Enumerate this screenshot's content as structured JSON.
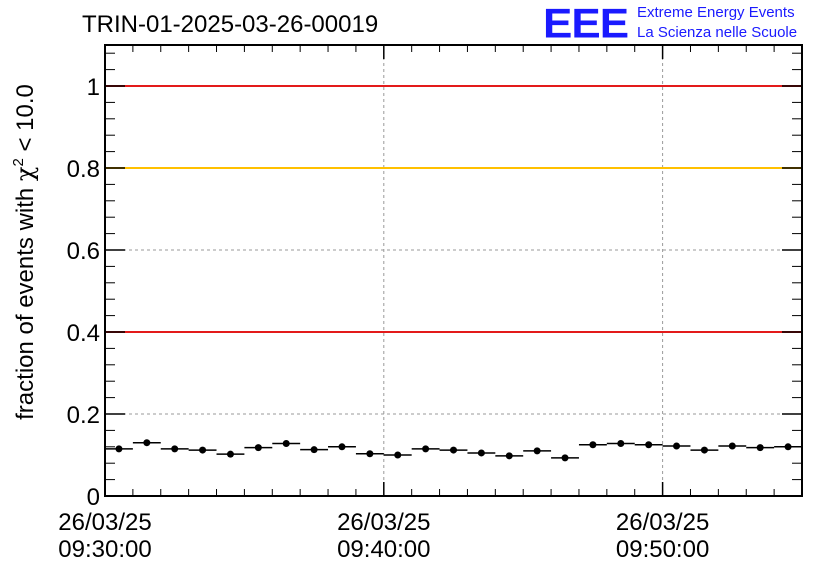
{
  "logo": {
    "mark": "EEE",
    "line1": "Extreme Energy Events",
    "line2": "La Scienza nelle Scuole",
    "color": "#1a1aff"
  },
  "chart_data": {
    "type": "scatter",
    "title": "TRIN-01-2025-03-26-00019",
    "ylabel": "fraction of events with χ² < 10.0",
    "ylabel_parts": {
      "pre": "fraction of events with ",
      "sym": "χ",
      "sup": "2",
      "post": " < 10.0"
    },
    "ylim": [
      0,
      1.1
    ],
    "xlim": [
      "2025-03-26 09:30:00",
      "2025-03-26 09:55:00"
    ],
    "y_ticks": [
      {
        "value": 0,
        "label": "0"
      },
      {
        "value": 0.2,
        "label": "0.2"
      },
      {
        "value": 0.4,
        "label": "0.4"
      },
      {
        "value": 0.6,
        "label": "0.6"
      },
      {
        "value": 0.8,
        "label": "0.8"
      },
      {
        "value": 1,
        "label": "1"
      }
    ],
    "x_ticks": [
      {
        "value": "2025-03-26 09:30:00",
        "line1": "26/03/25",
        "line2": "09:30:00"
      },
      {
        "value": "2025-03-26 09:40:00",
        "line1": "26/03/25",
        "line2": "09:40:00"
      },
      {
        "value": "2025-03-26 09:50:00",
        "line1": "26/03/25",
        "line2": "09:50:00"
      }
    ],
    "grid": true,
    "reference_lines": [
      {
        "y": 1.0,
        "color": "#e31a1a"
      },
      {
        "y": 0.8,
        "color": "#ffc000"
      },
      {
        "y": 0.4,
        "color": "#e31a1a"
      }
    ],
    "series": [
      {
        "color": "#000000",
        "x": [
          "2025-03-26 09:30:30",
          "2025-03-26 09:31:30",
          "2025-03-26 09:32:30",
          "2025-03-26 09:33:30",
          "2025-03-26 09:34:30",
          "2025-03-26 09:35:30",
          "2025-03-26 09:36:30",
          "2025-03-26 09:37:30",
          "2025-03-26 09:38:30",
          "2025-03-26 09:39:30",
          "2025-03-26 09:40:30",
          "2025-03-26 09:41:30",
          "2025-03-26 09:42:30",
          "2025-03-26 09:43:30",
          "2025-03-26 09:44:30",
          "2025-03-26 09:45:30",
          "2025-03-26 09:46:30",
          "2025-03-26 09:47:30",
          "2025-03-26 09:48:30",
          "2025-03-26 09:49:30",
          "2025-03-26 09:50:30",
          "2025-03-26 09:51:30",
          "2025-03-26 09:52:30",
          "2025-03-26 09:53:30",
          "2025-03-26 09:54:30"
        ],
        "y": [
          0.115,
          0.13,
          0.115,
          0.112,
          0.102,
          0.118,
          0.128,
          0.113,
          0.12,
          0.103,
          0.1,
          0.115,
          0.112,
          0.105,
          0.098,
          0.11,
          0.093,
          0.125,
          0.128,
          0.125,
          0.122,
          0.112,
          0.122,
          0.118,
          0.12
        ]
      }
    ]
  }
}
